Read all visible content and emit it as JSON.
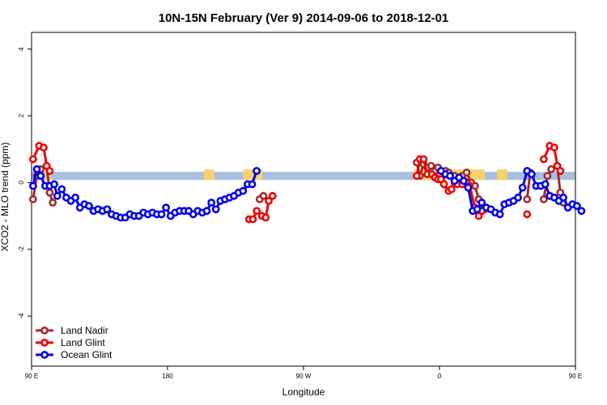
{
  "chart_data": {
    "type": "line",
    "title": "10N-15N February (Ver 9)   2014-09-06 to 2018-12-01",
    "xlabel": "Longitude",
    "ylabel": "XCO2 - MLO trend (ppm)",
    "xlim": [
      90,
      450
    ],
    "ylim": [
      -5.5,
      4.5
    ],
    "x_ticks": [
      {
        "value": 90,
        "label": "90 E"
      },
      {
        "value": 180,
        "label": "180"
      },
      {
        "value": 270,
        "label": "90 W"
      },
      {
        "value": 360,
        "label": "0"
      },
      {
        "value": 450,
        "label": "90 E"
      },
      {
        "value": 540,
        "label": "180"
      }
    ],
    "y_ticks": [
      {
        "value": 4,
        "label": "4"
      },
      {
        "value": 2,
        "label": "2"
      },
      {
        "value": 0,
        "label": "0"
      },
      {
        "value": -2,
        "label": "-2"
      },
      {
        "value": -4,
        "label": "-4"
      }
    ],
    "grid": false,
    "legend_position": "bottom-left",
    "band": {
      "ymin": 0.08,
      "ymax": 0.32,
      "color": "#a8bfdf"
    },
    "land_color": "#f5d36a",
    "land_patches": [
      {
        "x0": 99,
        "x1": 103
      },
      {
        "x0": 204,
        "x1": 211
      },
      {
        "x0": 230,
        "x1": 243
      },
      {
        "x0": 343,
        "x1": 346
      },
      {
        "x0": 348,
        "x1": 390
      },
      {
        "x0": 398,
        "x1": 405
      },
      {
        "x0": 484,
        "x1": 493
      }
    ],
    "series": [
      {
        "name": "Land Nadir",
        "color": "#a52a2a",
        "segments": [
          [
            [
              91,
              -0.5
            ],
            [
              93.5,
              0.2
            ],
            [
              96,
              0.4
            ],
            [
              100,
              0.5
            ],
            [
              102,
              -0.3
            ],
            [
              104,
              -0.6
            ]
          ],
          [
            [
              241,
              -0.5
            ],
            [
              243.5,
              -0.4
            ]
          ],
          [
            [
              345,
              0.6
            ],
            [
              347,
              0.2
            ],
            [
              349.5,
              0.55
            ],
            [
              352,
              0.45
            ],
            [
              354.5,
              0.5
            ],
            [
              357,
              0.35
            ],
            [
              359,
              0.45
            ],
            [
              361,
              0.35
            ],
            [
              364,
              0.35
            ],
            [
              366,
              0.3
            ],
            [
              368,
              0.2
            ],
            [
              370,
              0.2
            ],
            [
              372,
              0.1
            ],
            [
              375,
              0.2
            ],
            [
              378,
              0.3
            ],
            [
              381,
              0.0
            ],
            [
              383.5,
              -0.1
            ],
            [
              386,
              -0.5
            ],
            [
              388,
              -0.85
            ],
            [
              390,
              -0.8
            ]
          ],
          [
            [
              418,
              -0.5
            ],
            [
              420,
              0.3
            ]
          ],
          [
            [
              429,
              -0.5
            ],
            [
              431.5,
              0.2
            ],
            [
              434,
              0.4
            ],
            [
              438,
              0.5
            ],
            [
              440,
              -0.3
            ],
            [
              442,
              -0.6
            ]
          ]
        ]
      },
      {
        "name": "Land Glint",
        "color": "#ee0000",
        "segments": [
          [
            [
              91,
              0.7
            ],
            [
              95,
              1.1
            ],
            [
              98,
              1.05
            ],
            [
              100,
              0.5
            ],
            [
              102,
              0.35
            ]
          ],
          [
            [
              234,
              -1.1
            ],
            [
              236.5,
              -1.1
            ],
            [
              239,
              -0.85
            ],
            [
              242.5,
              -1.0
            ],
            [
              245,
              -1.05
            ],
            [
              247,
              -0.55
            ],
            [
              249.5,
              -0.4
            ]
          ],
          [
            [
              345,
              0.2
            ],
            [
              347,
              0.7
            ],
            [
              349.5,
              0.7
            ],
            [
              352,
              0.25
            ],
            [
              355,
              0.25
            ],
            [
              357,
              0.15
            ],
            [
              359,
              0.1
            ],
            [
              361,
              0.1
            ],
            [
              363,
              -0.05
            ],
            [
              366,
              -0.25
            ],
            [
              368,
              -0.2
            ],
            [
              370,
              0.0
            ],
            [
              372,
              -0.05
            ],
            [
              375,
              -0.05
            ],
            [
              378,
              0.0
            ],
            [
              380,
              -0.1
            ],
            [
              383.5,
              -0.75
            ],
            [
              386,
              -1.0
            ],
            [
              388,
              -0.85
            ]
          ],
          [
            [
              418,
              -0.95
            ]
          ],
          [
            [
              429,
              0.7
            ],
            [
              433,
              1.1
            ],
            [
              436,
              1.05
            ],
            [
              438,
              0.5
            ],
            [
              440,
              0.35
            ]
          ]
        ]
      },
      {
        "name": "Ocean Glint",
        "color": "#0000ee",
        "segments": [
          [
            [
              91,
              -0.1
            ],
            [
              93.5,
              0.4
            ],
            [
              96,
              0.2
            ],
            [
              99,
              -0.1
            ],
            [
              102,
              -0.1
            ],
            [
              105,
              -0.05
            ],
            [
              107,
              -0.4
            ],
            [
              110,
              -0.2
            ],
            [
              113,
              -0.45
            ],
            [
              116,
              -0.55
            ],
            [
              119,
              -0.45
            ],
            [
              122,
              -0.75
            ],
            [
              125,
              -0.65
            ],
            [
              128,
              -0.7
            ],
            [
              131,
              -0.85
            ],
            [
              134,
              -0.8
            ],
            [
              137,
              -0.85
            ],
            [
              140,
              -0.8
            ],
            [
              143,
              -0.95
            ],
            [
              146,
              -1.0
            ],
            [
              149,
              -1.05
            ],
            [
              152,
              -1.05
            ],
            [
              155,
              -0.95
            ],
            [
              158,
              -1.0
            ],
            [
              161,
              -1.0
            ],
            [
              164,
              -0.9
            ],
            [
              167,
              -0.95
            ],
            [
              170,
              -0.9
            ],
            [
              173,
              -0.95
            ],
            [
              176,
              -0.95
            ],
            [
              179,
              -0.75
            ],
            [
              182,
              -1.0
            ],
            [
              185,
              -0.9
            ],
            [
              188,
              -0.85
            ],
            [
              191,
              -0.85
            ],
            [
              194,
              -0.85
            ],
            [
              197,
              -0.95
            ],
            [
              200,
              -0.85
            ],
            [
              203,
              -0.9
            ],
            [
              206,
              -0.85
            ],
            [
              209,
              -0.6
            ],
            [
              212,
              -0.8
            ],
            [
              215,
              -0.55
            ],
            [
              218,
              -0.5
            ],
            [
              221,
              -0.45
            ],
            [
              224,
              -0.4
            ],
            [
              227,
              -0.3
            ],
            [
              230,
              -0.25
            ],
            [
              233,
              -0.05
            ],
            [
              236,
              -0.05
            ],
            [
              239,
              0.35
            ]
          ],
          [
            [
              361,
              0.35
            ],
            [
              364,
              0.25
            ],
            [
              367,
              0.2
            ],
            [
              370,
              0.05
            ],
            [
              373,
              0.15
            ],
            [
              376,
              0.05
            ],
            [
              379,
              -0.15
            ],
            [
              382,
              -0.85
            ],
            [
              385,
              -0.8
            ],
            [
              388,
              -0.6
            ],
            [
              391,
              -0.75
            ],
            [
              394,
              -0.8
            ],
            [
              397,
              -0.9
            ],
            [
              400,
              -0.95
            ],
            [
              403,
              -0.65
            ],
            [
              406,
              -0.6
            ],
            [
              409,
              -0.55
            ],
            [
              412,
              -0.45
            ],
            [
              415,
              -0.15
            ],
            [
              418,
              0.35
            ],
            [
              421,
              0.25
            ],
            [
              424,
              -0.1
            ],
            [
              427,
              -0.1
            ],
            [
              430,
              -0.05
            ],
            [
              433,
              -0.4
            ],
            [
              436,
              -0.45
            ],
            [
              439,
              -0.55
            ],
            [
              442,
              -0.45
            ],
            [
              445,
              -0.75
            ],
            [
              448,
              -0.65
            ],
            [
              451,
              -0.7
            ],
            [
              454,
              -0.85
            ]
          ]
        ],
        "extra_x_map_note": ""
      }
    ]
  }
}
